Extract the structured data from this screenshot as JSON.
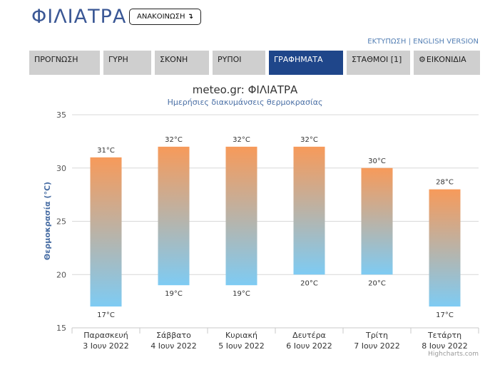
{
  "header": {
    "title": "ΦΙΛΙΑΤΡΑ",
    "announce_label": "ΑΝΑΚΟΙΝΩΣΗ",
    "announce_icon": "arrow-down-left-icon",
    "print_link": "ΕΚΤΥΠΩΣΗ",
    "separator": "|",
    "english_link": "ENGLISH VERSION"
  },
  "tabs": [
    {
      "label": "ΠΡΟΓΝΩΣΗ",
      "active": false
    },
    {
      "label": "ΓΥΡΗ",
      "active": false
    },
    {
      "label": "ΣΚΟΝΗ",
      "active": false
    },
    {
      "label": "ΡΥΠΟΙ",
      "active": false
    },
    {
      "label": "ΓΡΑΦΗΜΑΤΑ",
      "active": true
    },
    {
      "label": "ΣΤΑΘΜΟΙ [1]",
      "active": false
    },
    {
      "label": "ΕΙΚΟΝΙΔΙΑ",
      "active": false,
      "icon": "gear-icon"
    }
  ],
  "colors": {
    "brand": "#3a5795",
    "active_tab": "#1f468a",
    "tab": "#cfcfcf",
    "bar_top": "#f79a5a",
    "bar_bottom": "#7ecbf3"
  },
  "chart_data": {
    "type": "bar",
    "subtype": "columnrange",
    "title": "meteo.gr: ΦΙΛΙΑΤΡΑ",
    "subtitle": "Ημερήσιες διακυμάνσεις θερμοκρασίας",
    "ylabel": "Θερμοκρασία (°C)",
    "ylim": [
      15,
      35
    ],
    "yticks": [
      15,
      20,
      25,
      30,
      35
    ],
    "grid": true,
    "categories": [
      [
        "Παρασκευή",
        "3 Ιουν 2022"
      ],
      [
        "Σάββατο",
        "4 Ιουν 2022"
      ],
      [
        "Κυριακή",
        "5 Ιουν 2022"
      ],
      [
        "Δευτέρα",
        "6 Ιουν 2022"
      ],
      [
        "Τρίτη",
        "7 Ιουν 2022"
      ],
      [
        "Τετάρτη",
        "8 Ιουν 2022"
      ]
    ],
    "low": [
      17,
      19,
      19,
      20,
      20,
      17
    ],
    "high": [
      31,
      32,
      32,
      32,
      30,
      28
    ],
    "low_labels": [
      "17°C",
      "19°C",
      "19°C",
      "20°C",
      "20°C",
      "17°C"
    ],
    "high_labels": [
      "31°C",
      "32°C",
      "32°C",
      "32°C",
      "30°C",
      "28°C"
    ]
  },
  "credits": "Highcharts.com"
}
